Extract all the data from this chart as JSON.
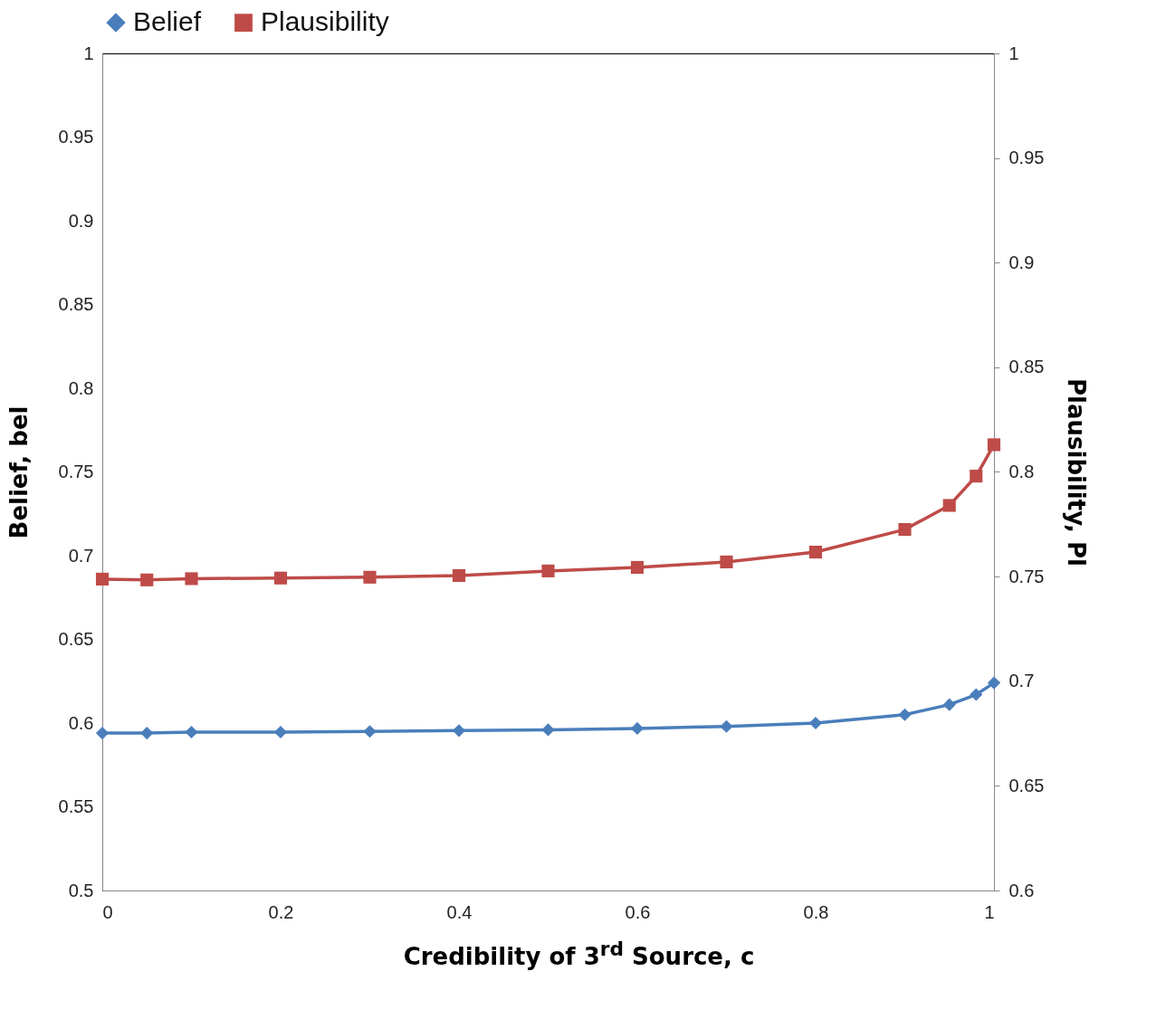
{
  "chart_data": {
    "type": "line",
    "xlabel": "Credibility of 3$^{rd}$ Source, c",
    "ylabel": "Belief, bel",
    "y2label": "Plausibility, Pl",
    "x": [
      0,
      0.05,
      0.1,
      0.2,
      0.3,
      0.4,
      0.5,
      0.6,
      0.7,
      0.8,
      0.9,
      0.95,
      0.98,
      1
    ],
    "series": [
      {
        "name": "Belief",
        "color": "#4a7ebb",
        "marker": "diamond",
        "values": [
          0.594,
          0.594,
          0.5946,
          0.5946,
          0.595,
          0.5955,
          0.596,
          0.5968,
          0.598,
          0.6,
          0.605,
          0.611,
          0.617,
          0.624
        ]
      },
      {
        "name": "Plausibility",
        "color": "#be4b48",
        "marker": "square",
        "axis": "y2",
        "values": [
          0.7488,
          0.7484,
          0.749,
          0.7493,
          0.7497,
          0.7505,
          0.7527,
          0.7544,
          0.757,
          0.7617,
          0.7725,
          0.784,
          0.798,
          0.813
        ]
      }
    ],
    "xlim": [
      0,
      1
    ],
    "xticks": [
      0,
      0.2,
      0.4,
      0.6,
      0.8,
      1
    ],
    "ylim": [
      0.5,
      1
    ],
    "yticks": [
      0.5,
      0.55,
      0.6,
      0.65,
      0.7,
      0.75,
      0.8,
      0.85,
      0.9,
      0.95,
      1
    ],
    "y2lim": [
      0.6,
      1
    ],
    "y2ticks": [
      0.6,
      0.65,
      0.7,
      0.75,
      0.8,
      0.85,
      0.9,
      0.95,
      1
    ],
    "legend": "top",
    "grid": false,
    "line_style": "solid"
  }
}
